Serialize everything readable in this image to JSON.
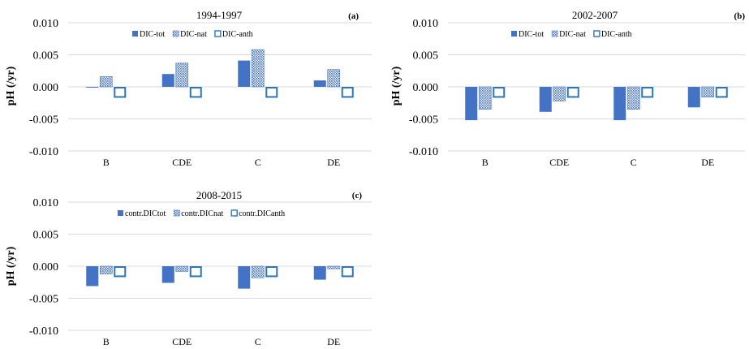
{
  "colors": {
    "solid_fill": "#4472C4",
    "dotted_fill": "#4472C4",
    "outline_stroke": "#2E75B6",
    "gridline": "#D9D9D9",
    "text": "#000000"
  },
  "chart_data": [
    {
      "type": "bar",
      "title": "1994-1997",
      "panel_label": "(a)",
      "ylabel": "pH (/yr)",
      "xlabel": "",
      "ylim": [
        -0.01,
        0.01
      ],
      "yticks": [
        "0.010",
        "0.005",
        "0.000",
        "-0.005",
        "-0.010"
      ],
      "ytick_values": [
        0.01,
        0.005,
        0.0,
        -0.005,
        -0.01
      ],
      "categories": [
        "B",
        "CDE",
        "C",
        "DE"
      ],
      "grid": true,
      "legend_position": "top",
      "series": [
        {
          "name": "DIC-tot",
          "style": "solid",
          "values": [
            -0.0001,
            0.002,
            0.0041,
            0.001
          ]
        },
        {
          "name": "DIC-nat",
          "style": "dotted",
          "values": [
            0.0016,
            0.0037,
            0.0058,
            0.0027
          ]
        },
        {
          "name": "DIC-anth",
          "style": "outline",
          "values": [
            -0.0017,
            -0.0017,
            -0.0017,
            -0.0017
          ]
        }
      ]
    },
    {
      "type": "bar",
      "title": "2002-2007",
      "panel_label": "(b)",
      "ylabel": "pH (/yr)",
      "xlabel": "",
      "ylim": [
        -0.01,
        0.01
      ],
      "yticks": [
        "0.010",
        "0.005",
        "0.000",
        "-0.005",
        "-0.010"
      ],
      "ytick_values": [
        0.01,
        0.005,
        0.0,
        -0.005,
        -0.01
      ],
      "categories": [
        "B",
        "CDE",
        "C",
        "DE"
      ],
      "grid": true,
      "legend_position": "top",
      "series": [
        {
          "name": "DIC-tot",
          "style": "solid",
          "values": [
            -0.0052,
            -0.0039,
            -0.0052,
            -0.0032
          ]
        },
        {
          "name": "DIC-nat",
          "style": "dotted",
          "values": [
            -0.0035,
            -0.0022,
            -0.0035,
            -0.0016
          ]
        },
        {
          "name": "DIC-anth",
          "style": "outline",
          "values": [
            -0.0017,
            -0.0017,
            -0.0017,
            -0.0017
          ]
        }
      ]
    },
    {
      "type": "bar",
      "title": "2008-2015",
      "panel_label": "(c)",
      "ylabel": "pH (/yr)",
      "xlabel": "",
      "ylim": [
        -0.01,
        0.01
      ],
      "yticks": [
        "0.010",
        "0.005",
        "0.000",
        "-0.005",
        "-0.010"
      ],
      "ytick_values": [
        0.01,
        0.005,
        0.0,
        -0.005,
        -0.01
      ],
      "categories": [
        "B",
        "CDE",
        "C",
        "DE"
      ],
      "grid": true,
      "legend_position": "top",
      "series": [
        {
          "name": "contr.DICtot",
          "style": "solid",
          "values": [
            -0.0031,
            -0.0026,
            -0.0035,
            -0.0021
          ]
        },
        {
          "name": "contr.DICnat",
          "style": "dotted",
          "values": [
            -0.0012,
            -0.0008,
            -0.0018,
            -0.0004
          ]
        },
        {
          "name": "contr.DICanth",
          "style": "outline",
          "values": [
            -0.0017,
            -0.0017,
            -0.0017,
            -0.0017
          ]
        }
      ]
    }
  ]
}
